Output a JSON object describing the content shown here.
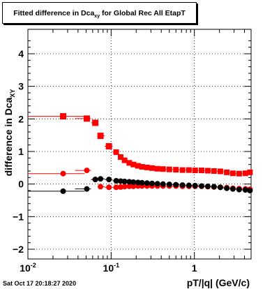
{
  "title": {
    "prefix": "Fitted difference in Dca",
    "subscript": "xy",
    "suffix": " for Global Rec All EtapT"
  },
  "timestamp": "Sat Oct 17 20:18:27 2020",
  "chart_data": {
    "type": "scatter",
    "xlabel": "pT/|q| (GeV/c)",
    "ylabel_main": "difference in Dca",
    "ylabel_sub": "XY",
    "xscale": "log",
    "xlim": [
      0.01,
      4.8
    ],
    "ylim": [
      -2.3,
      4.75
    ],
    "x_tick_labels": [
      {
        "value": 0.01,
        "base": "10",
        "exp": "-2"
      },
      {
        "value": 0.1,
        "base": "10",
        "exp": "-1"
      },
      {
        "value": 1,
        "base": "1",
        "exp": ""
      }
    ],
    "y_tick_labels": [
      {
        "value": -2,
        "text": "−2"
      },
      {
        "value": -1,
        "text": "−1"
      },
      {
        "value": 0,
        "text": "0"
      },
      {
        "value": 1,
        "text": "1"
      },
      {
        "value": 2,
        "text": "2"
      },
      {
        "value": 3,
        "text": "3"
      },
      {
        "value": 4,
        "text": "4"
      }
    ],
    "grid": true,
    "series": [
      {
        "color": "#ff0000",
        "marker": "square",
        "points": [
          [
            0.0265,
            2.08
          ],
          [
            0.051,
            2.01
          ],
          [
            0.0645,
            1.88
          ],
          [
            0.0745,
            1.48
          ],
          [
            0.094,
            1.16
          ],
          [
            0.115,
            0.98
          ],
          [
            0.13,
            0.83
          ],
          [
            0.145,
            0.73
          ],
          [
            0.165,
            0.65
          ],
          [
            0.185,
            0.6
          ],
          [
            0.21,
            0.56
          ],
          [
            0.235,
            0.53
          ],
          [
            0.27,
            0.51
          ],
          [
            0.31,
            0.49
          ],
          [
            0.36,
            0.47
          ],
          [
            0.42,
            0.46
          ],
          [
            0.5,
            0.45
          ],
          [
            0.6,
            0.44
          ],
          [
            0.72,
            0.43
          ],
          [
            0.86,
            0.43
          ],
          [
            1.02,
            0.42
          ],
          [
            1.22,
            0.42
          ],
          [
            1.45,
            0.41
          ],
          [
            1.72,
            0.4
          ],
          [
            2.05,
            0.39
          ],
          [
            2.45,
            0.36
          ],
          [
            2.9,
            0.33
          ],
          [
            3.45,
            0.32
          ],
          [
            4.1,
            0.33
          ],
          [
            4.65,
            0.36
          ]
        ],
        "xerr_first": [
          0.01,
          0.048
        ]
      },
      {
        "color": "#ff0000",
        "marker": "circle",
        "points": [
          [
            0.0265,
            0.32
          ],
          [
            0.051,
            0.42
          ],
          [
            0.0645,
            0.14
          ],
          [
            0.0745,
            -0.08
          ],
          [
            0.094,
            -0.1
          ],
          [
            0.115,
            -0.1
          ],
          [
            0.13,
            -0.09
          ],
          [
            0.145,
            -0.08
          ],
          [
            0.165,
            -0.07
          ],
          [
            0.185,
            -0.07
          ],
          [
            0.21,
            -0.06
          ],
          [
            0.235,
            -0.06
          ],
          [
            0.27,
            -0.06
          ],
          [
            0.31,
            -0.06
          ],
          [
            0.36,
            -0.06
          ],
          [
            0.42,
            -0.06
          ],
          [
            0.5,
            -0.06
          ],
          [
            0.6,
            -0.06
          ],
          [
            0.72,
            -0.07
          ],
          [
            0.86,
            -0.07
          ],
          [
            1.02,
            -0.07
          ],
          [
            1.22,
            -0.07
          ],
          [
            1.45,
            -0.08
          ],
          [
            1.72,
            -0.09
          ],
          [
            2.05,
            -0.1
          ],
          [
            2.45,
            -0.11
          ],
          [
            2.9,
            -0.13
          ],
          [
            3.45,
            -0.14
          ],
          [
            4.1,
            -0.15
          ],
          [
            4.65,
            -0.16
          ]
        ],
        "xerr_first": [
          0.01,
          0.048
        ]
      },
      {
        "color": "#000000",
        "marker": "circle",
        "points": [
          [
            0.0265,
            -0.22
          ],
          [
            0.051,
            -0.15
          ],
          [
            0.0645,
            0.14
          ],
          [
            0.0745,
            0.16
          ],
          [
            0.094,
            0.14
          ],
          [
            0.115,
            0.1
          ],
          [
            0.13,
            0.09
          ],
          [
            0.145,
            0.08
          ],
          [
            0.165,
            0.07
          ],
          [
            0.185,
            0.06
          ],
          [
            0.21,
            0.05
          ],
          [
            0.235,
            0.04
          ],
          [
            0.27,
            0.03
          ],
          [
            0.31,
            0.02
          ],
          [
            0.36,
            0.01
          ],
          [
            0.42,
            0.0
          ],
          [
            0.5,
            -0.01
          ],
          [
            0.6,
            -0.02
          ],
          [
            0.72,
            -0.03
          ],
          [
            0.86,
            -0.04
          ],
          [
            1.02,
            -0.05
          ],
          [
            1.22,
            -0.06
          ],
          [
            1.45,
            -0.07
          ],
          [
            1.72,
            -0.08
          ],
          [
            2.05,
            -0.1
          ],
          [
            2.45,
            -0.13
          ],
          [
            2.9,
            -0.15
          ],
          [
            3.45,
            -0.17
          ],
          [
            4.1,
            -0.18
          ],
          [
            4.65,
            -0.2
          ]
        ],
        "xerr_first": [
          0.01,
          0.048
        ]
      }
    ]
  }
}
